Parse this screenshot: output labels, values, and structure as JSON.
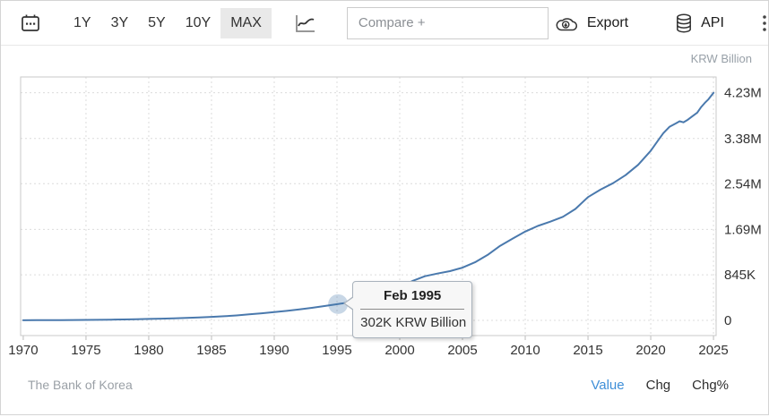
{
  "toolbar": {
    "ranges": [
      {
        "label": "1Y",
        "active": false
      },
      {
        "label": "3Y",
        "active": false
      },
      {
        "label": "5Y",
        "active": false
      },
      {
        "label": "10Y",
        "active": false
      },
      {
        "label": "MAX",
        "active": true
      }
    ],
    "compare_placeholder": "Compare +",
    "export_label": "Export",
    "api_label": "API"
  },
  "chart_data": {
    "type": "line",
    "unit_label": "KRW Billion",
    "xlim": [
      1969.79,
      2025.21
    ],
    "ylim": [
      -283000,
      4524000
    ],
    "grid": "dotted",
    "x_ticks": [
      1970,
      1975,
      1980,
      1985,
      1990,
      1995,
      2000,
      2005,
      2010,
      2015,
      2020,
      2025
    ],
    "y_ticks": [
      {
        "value": 0,
        "label": "0"
      },
      {
        "value": 845000,
        "label": "845K"
      },
      {
        "value": 1690000,
        "label": "1.69M"
      },
      {
        "value": 2540000,
        "label": "2.54M"
      },
      {
        "value": 3380000,
        "label": "3.38M"
      },
      {
        "value": 4230000,
        "label": "4.23M"
      }
    ],
    "series": [
      {
        "name": "Value",
        "color": "#4a79ad",
        "points": [
          [
            1970,
            2000
          ],
          [
            1971,
            2600
          ],
          [
            1972,
            3400
          ],
          [
            1973,
            4500
          ],
          [
            1974,
            6000
          ],
          [
            1975,
            7800
          ],
          [
            1976,
            10200
          ],
          [
            1977,
            13200
          ],
          [
            1978,
            16800
          ],
          [
            1979,
            21000
          ],
          [
            1980,
            26000
          ],
          [
            1981,
            31500
          ],
          [
            1982,
            38500
          ],
          [
            1983,
            46500
          ],
          [
            1984,
            55000
          ],
          [
            1985,
            64500
          ],
          [
            1986,
            76500
          ],
          [
            1987,
            92000
          ],
          [
            1988,
            111000
          ],
          [
            1989,
            131000
          ],
          [
            1990,
            152000
          ],
          [
            1991,
            176000
          ],
          [
            1992,
            203000
          ],
          [
            1993,
            233000
          ],
          [
            1994,
            266000
          ],
          [
            1995.083,
            302000
          ],
          [
            1996,
            336000
          ],
          [
            1997,
            370000
          ],
          [
            1998,
            415000
          ],
          [
            1999,
            490000
          ],
          [
            2000,
            620000
          ],
          [
            2001,
            730000
          ],
          [
            2002,
            820000
          ],
          [
            2003,
            870000
          ],
          [
            2004,
            915000
          ],
          [
            2005,
            980000
          ],
          [
            2006,
            1080000
          ],
          [
            2007,
            1215000
          ],
          [
            2008,
            1385000
          ],
          [
            2009,
            1520000
          ],
          [
            2010,
            1650000
          ],
          [
            2011,
            1755000
          ],
          [
            2012,
            1835000
          ],
          [
            2013,
            1925000
          ],
          [
            2014,
            2070000
          ],
          [
            2015,
            2290000
          ],
          [
            2016,
            2430000
          ],
          [
            2017,
            2550000
          ],
          [
            2018,
            2700000
          ],
          [
            2019,
            2890000
          ],
          [
            2020,
            3150000
          ],
          [
            2020.6,
            3350000
          ],
          [
            2021,
            3480000
          ],
          [
            2021.5,
            3600000
          ],
          [
            2022,
            3660000
          ],
          [
            2022.3,
            3700000
          ],
          [
            2022.6,
            3680000
          ],
          [
            2022.9,
            3720000
          ],
          [
            2023.3,
            3790000
          ],
          [
            2023.7,
            3860000
          ],
          [
            2024,
            3960000
          ],
          [
            2024.3,
            4040000
          ],
          [
            2024.6,
            4110000
          ],
          [
            2024.8,
            4170000
          ],
          [
            2025,
            4230000
          ]
        ]
      }
    ],
    "tooltip": {
      "title": "Feb 1995",
      "value_text": "302K KRW Billion",
      "x": 1995.083,
      "value": 302000
    }
  },
  "footer": {
    "source": "The Bank of Korea",
    "links": [
      {
        "label": "Value",
        "active": true
      },
      {
        "label": "Chg",
        "active": false
      },
      {
        "label": "Chg%",
        "active": false
      }
    ]
  }
}
